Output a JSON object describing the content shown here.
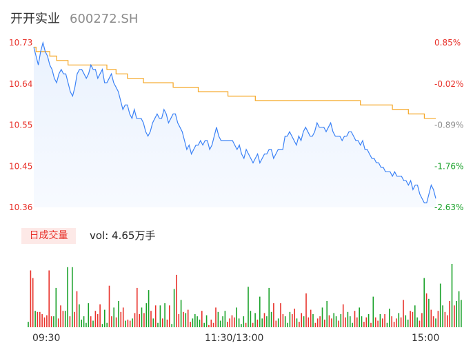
{
  "header": {
    "stock_name": "开开实业",
    "stock_code": "600272.SH"
  },
  "volume_panel": {
    "badge_label": "日成交量",
    "vol_text": "vol: 4.65万手"
  },
  "colors": {
    "price_line": "#3b82f6",
    "avg_line": "#f5a623",
    "fill_top": "#eaf2fe",
    "up": "#e8312a",
    "down": "#1aa22a",
    "neutral": "#8c8c8c"
  },
  "chart_data": {
    "type": "line",
    "price_axis": {
      "ticks": [
        "10.73",
        "10.64",
        "10.55",
        "10.45",
        "10.36"
      ],
      "ylim": [
        10.36,
        10.73
      ]
    },
    "pct_axis": {
      "ticks": [
        "0.85%",
        "-0.02%",
        "-0.89%",
        "-1.76%",
        "-2.63%"
      ]
    },
    "time_ticks": [
      "09:30",
      "11:30/13:00",
      "15:00"
    ],
    "series": [
      {
        "values": [
          10.72,
          10.7,
          10.68,
          10.71,
          10.73,
          10.71,
          10.7,
          10.68,
          10.67,
          10.65,
          10.64,
          10.66,
          10.67,
          10.66,
          10.66,
          10.64,
          10.62,
          10.61,
          10.63,
          10.66,
          10.67,
          10.67,
          10.66,
          10.65,
          10.66,
          10.68,
          10.67,
          10.67,
          10.65,
          10.66,
          10.67,
          10.64,
          10.64,
          10.65,
          10.66,
          10.64,
          10.63,
          10.62,
          10.6,
          10.58,
          10.59,
          10.59,
          10.57,
          10.56,
          10.58,
          10.56,
          10.56,
          10.56,
          10.55,
          10.53,
          10.52,
          10.53,
          10.55,
          10.56,
          10.57,
          10.56,
          10.56,
          10.58,
          10.57,
          10.55,
          10.56,
          10.57,
          10.57,
          10.55,
          10.54,
          10.53,
          10.51,
          10.49,
          10.5,
          10.48,
          10.49,
          10.5,
          10.5,
          10.51,
          10.5,
          10.51,
          10.51,
          10.49,
          10.5,
          10.52,
          10.54,
          10.52,
          10.51,
          10.51,
          10.51,
          10.51,
          10.51,
          10.51,
          10.5,
          10.49,
          10.5,
          10.48,
          10.47,
          10.49,
          10.48,
          10.47,
          10.46,
          10.47,
          10.48,
          10.46,
          10.47,
          10.48,
          10.48,
          10.49,
          10.49,
          10.47,
          10.48,
          10.49,
          10.49,
          10.49,
          10.52,
          10.52,
          10.53,
          10.52,
          10.51,
          10.5,
          10.52,
          10.51,
          10.53,
          10.54,
          10.53,
          10.52,
          10.52,
          10.53,
          10.55,
          10.54,
          10.54,
          10.54,
          10.53,
          10.54,
          10.55,
          10.53,
          10.52,
          10.52,
          10.52,
          10.51,
          10.52,
          10.52,
          10.53,
          10.53,
          10.52,
          10.51,
          10.51,
          10.5,
          10.51,
          10.49,
          10.49,
          10.48,
          10.47,
          10.47,
          10.46,
          10.46,
          10.45,
          10.45,
          10.44,
          10.44,
          10.44,
          10.43,
          10.44,
          10.43,
          10.43,
          10.43,
          10.42,
          10.42,
          10.41,
          10.42,
          10.4,
          10.41,
          10.41,
          10.39,
          10.38,
          10.37,
          10.37,
          10.39,
          10.41,
          10.4,
          10.38
        ]
      },
      {
        "values": [
          10.72,
          10.71,
          10.71,
          10.71,
          10.71,
          10.71,
          10.71,
          10.7,
          10.7,
          10.7,
          10.69,
          10.69,
          10.69,
          10.69,
          10.69,
          10.68,
          10.68,
          10.68,
          10.68,
          10.68,
          10.68,
          10.68,
          10.68,
          10.68,
          10.68,
          10.68,
          10.68,
          10.68,
          10.68,
          10.68,
          10.68,
          10.68,
          10.67,
          10.67,
          10.67,
          10.67,
          10.66,
          10.66,
          10.66,
          10.66,
          10.66,
          10.65,
          10.65,
          10.65,
          10.65,
          10.65,
          10.65,
          10.65,
          10.64,
          10.64,
          10.64,
          10.64,
          10.64,
          10.64,
          10.64,
          10.64,
          10.64,
          10.64,
          10.64,
          10.64,
          10.64,
          10.63,
          10.63,
          10.63,
          10.63,
          10.63,
          10.63,
          10.63,
          10.63,
          10.63,
          10.63,
          10.63,
          10.62,
          10.62,
          10.62,
          10.62,
          10.62,
          10.62,
          10.62,
          10.62,
          10.62,
          10.62,
          10.62,
          10.62,
          10.62,
          10.61,
          10.61,
          10.61,
          10.61,
          10.61,
          10.61,
          10.61,
          10.61,
          10.61,
          10.61,
          10.61,
          10.61,
          10.6,
          10.6,
          10.6,
          10.6,
          10.6,
          10.6,
          10.6,
          10.6,
          10.6,
          10.6,
          10.6,
          10.6,
          10.6,
          10.6,
          10.6,
          10.6,
          10.6,
          10.6,
          10.6,
          10.6,
          10.6,
          10.6,
          10.6,
          10.6,
          10.6,
          10.6,
          10.6,
          10.6,
          10.6,
          10.6,
          10.6,
          10.6,
          10.6,
          10.6,
          10.6,
          10.6,
          10.6,
          10.6,
          10.6,
          10.6,
          10.6,
          10.6,
          10.6,
          10.6,
          10.6,
          10.6,
          10.59,
          10.59,
          10.59,
          10.59,
          10.59,
          10.59,
          10.59,
          10.59,
          10.59,
          10.59,
          10.59,
          10.59,
          10.59,
          10.59,
          10.58,
          10.58,
          10.58,
          10.58,
          10.58,
          10.58,
          10.58,
          10.57,
          10.57,
          10.57,
          10.57,
          10.57,
          10.57,
          10.57,
          10.56,
          10.56,
          10.56,
          10.56,
          10.56,
          10.56
        ]
      },
      {
        "values": [
          5,
          52,
          45,
          15,
          14,
          14,
          12,
          9,
          11,
          52,
          10,
          10,
          36,
          8,
          20,
          15,
          15,
          55,
          10,
          55,
          14,
          33,
          21,
          7,
          10,
          4,
          22,
          10,
          6,
          15,
          12,
          21,
          3,
          16,
          4,
          38,
          10,
          18,
          9,
          24,
          14,
          18,
          6,
          7,
          6,
          8,
          13,
          36,
          12,
          18,
          13,
          22,
          34,
          15,
          8,
          20,
          4,
          20,
          8,
          22,
          7,
          20,
          3,
          35,
          48,
          12,
          25,
          14,
          13,
          16,
          5,
          8,
          12,
          10,
          7,
          15,
          4,
          11,
          2,
          7,
          4,
          18,
          14,
          6,
          10,
          15,
          5,
          8,
          11,
          9,
          18,
          8,
          3,
          10,
          4,
          37,
          15,
          4,
          13,
          7,
          28,
          8,
          13,
          10,
          36,
          14,
          22,
          6,
          8,
          22,
          12,
          10,
          4,
          14,
          12,
          17,
          8,
          5,
          13,
          10,
          31,
          9,
          16,
          12,
          4,
          8,
          10,
          18,
          7,
          24,
          11,
          8,
          13,
          10,
          6,
          12,
          21,
          9,
          14,
          10,
          4,
          15,
          9,
          18,
          10,
          5,
          9,
          12,
          4,
          28,
          9,
          6,
          12,
          8,
          12,
          4,
          17,
          10,
          5,
          8,
          13,
          9,
          25,
          11,
          7,
          15,
          14,
          20,
          9,
          6,
          13,
          45,
          31,
          26,
          16,
          10,
          8,
          15,
          40,
          20,
          14,
          11,
          24,
          58,
          20,
          24,
          33,
          25
        ]
      },
      {
        "values": [
          0,
          1,
          1,
          0,
          1,
          1,
          1,
          1,
          1,
          1,
          1,
          0,
          0,
          1,
          1,
          1,
          0,
          0,
          1,
          0,
          1,
          1,
          0,
          0,
          0,
          0,
          0,
          1,
          0,
          1,
          1,
          1,
          0,
          0,
          0,
          1,
          1,
          0,
          1,
          0,
          1,
          1,
          0,
          1,
          1,
          0,
          1,
          1,
          1,
          0,
          1,
          0,
          0,
          1,
          0,
          1,
          0,
          0,
          1,
          0,
          1,
          1,
          0,
          0,
          1,
          1,
          0,
          1,
          0,
          1,
          1,
          0,
          0,
          0,
          0,
          1,
          0,
          0,
          1,
          1,
          1,
          1,
          0,
          0,
          0,
          0,
          1,
          1,
          1,
          1,
          0,
          0,
          0,
          0,
          1,
          0,
          0,
          1,
          0,
          1,
          0,
          0,
          1,
          0,
          0,
          0,
          1,
          1,
          0,
          1,
          1,
          0,
          0,
          0,
          1,
          1,
          0,
          1,
          1,
          0,
          1,
          1,
          1,
          0,
          1,
          1,
          1,
          0,
          1,
          0,
          1,
          1,
          0,
          0,
          1,
          0,
          1,
          1,
          0,
          0,
          0,
          1,
          1,
          0,
          0,
          1,
          1,
          0,
          1,
          0,
          1,
          1,
          0,
          1,
          1,
          0,
          0,
          1,
          1,
          1,
          0,
          1,
          1,
          0,
          0,
          1,
          1,
          0,
          0,
          1,
          1,
          0,
          1,
          0,
          1,
          1,
          0,
          1,
          0,
          0,
          1,
          1,
          1,
          0,
          1,
          0
        ]
      }
    ]
  }
}
